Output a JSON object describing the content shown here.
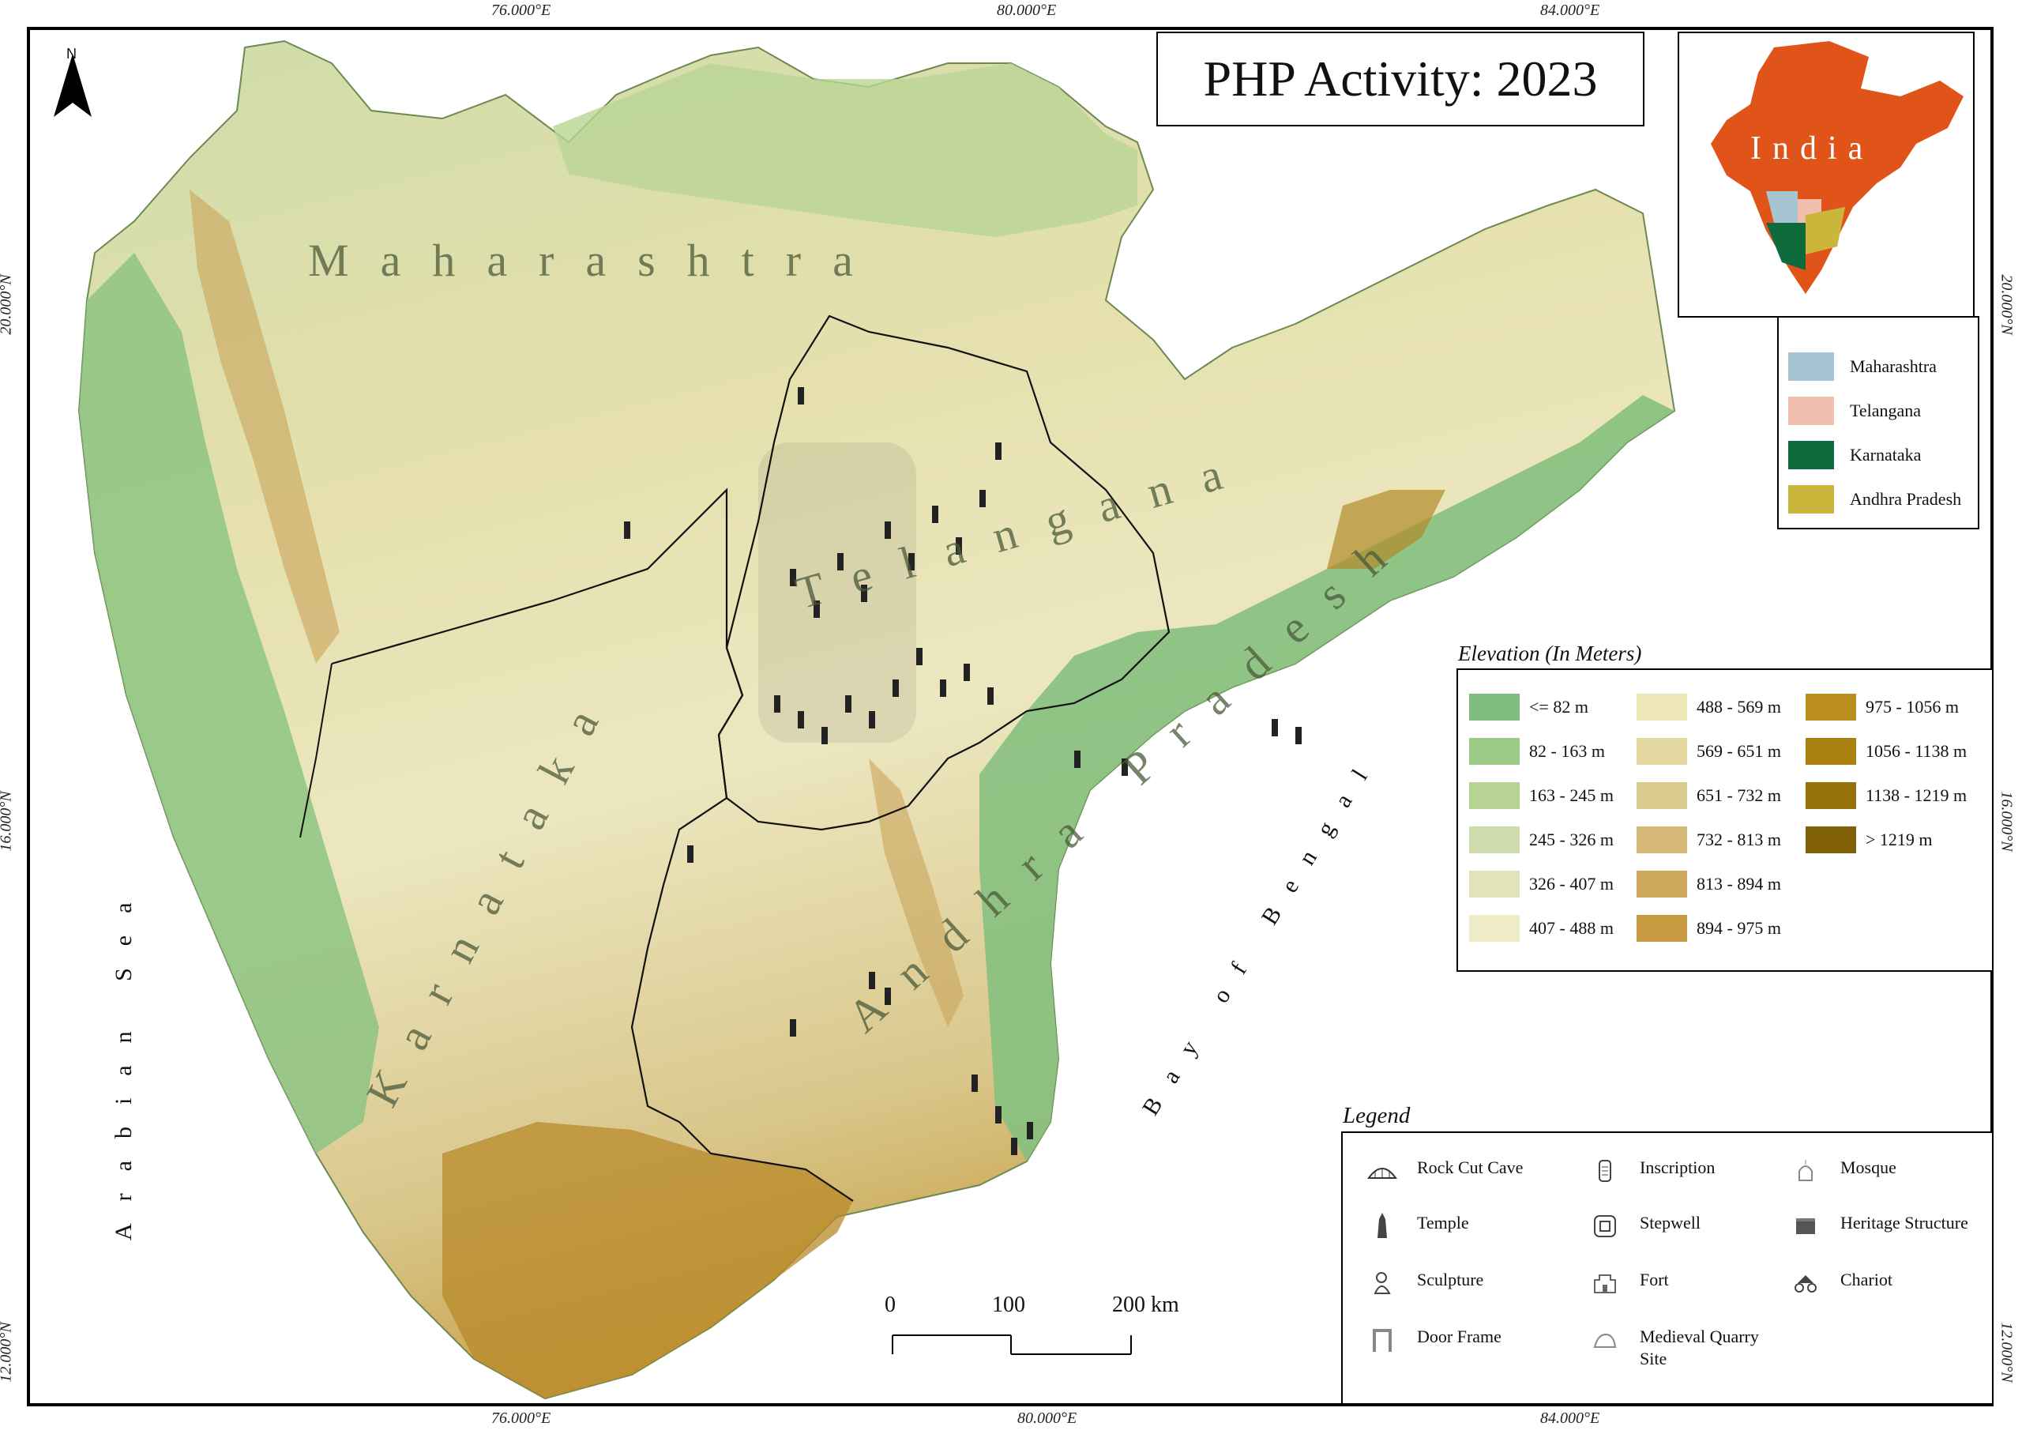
{
  "title": "PHP Activity: 2023",
  "coordinates": {
    "top": [
      "76.000°E",
      "80.000°E",
      "84.000°E"
    ],
    "bottom": [
      "76.000°E",
      "80.000°E",
      "84.000°E"
    ],
    "left": [
      "20.000°N",
      "16.000°N",
      "12.000°N"
    ],
    "right": [
      "20.000°N",
      "16.000°N",
      "12.000°N"
    ]
  },
  "north_arrow": "N",
  "inset": {
    "label": "India"
  },
  "map_labels": {
    "maharashtra": "Maharashtra",
    "telangana": "Telangana",
    "karnataka": "Karnataka",
    "andhra_pradesh": "Andhra Pradesh",
    "arabian_sea": "Arabian Sea",
    "bay_of_bengal": "Bay of Bengal"
  },
  "state_legend": [
    {
      "label": "Maharashtra",
      "color": "#a7c4d2"
    },
    {
      "label": "Telangana",
      "color": "#f2bfae"
    },
    {
      "label": "Karnataka",
      "color": "#0f6a3b"
    },
    {
      "label": "Andhra Pradesh",
      "color": "#c9b63a"
    }
  ],
  "elevation_legend": {
    "title": "Elevation (In Meters)",
    "classes": [
      {
        "label": "<= 82 m",
        "color": "#7fbe7d"
      },
      {
        "label": "82 - 163 m",
        "color": "#9ccb87"
      },
      {
        "label": "163 - 245 m",
        "color": "#b7d394"
      },
      {
        "label": "245 - 326 m",
        "color": "#cddcaa"
      },
      {
        "label": "326 - 407 m",
        "color": "#e1e4b8"
      },
      {
        "label": "407 - 488 m",
        "color": "#eeecc6"
      },
      {
        "label": "488 - 569 m",
        "color": "#ede6b8"
      },
      {
        "label": "569 - 651 m",
        "color": "#e5d9a2"
      },
      {
        "label": "651 - 732 m",
        "color": "#dccb8f"
      },
      {
        "label": "732 - 813 m",
        "color": "#d5b877"
      },
      {
        "label": "813 - 894 m",
        "color": "#cca95c"
      },
      {
        "label": "894 - 975 m",
        "color": "#c79b3f"
      },
      {
        "label": "975 - 1056 m",
        "color": "#b98e1c"
      },
      {
        "label": "1056 - 1138 m",
        "color": "#a98110"
      },
      {
        "label": "1138 - 1219 m",
        "color": "#967109"
      },
      {
        "label": "> 1219 m",
        "color": "#7f6007"
      }
    ]
  },
  "legend": {
    "title": "Legend",
    "items": [
      {
        "label": "Rock Cut Cave",
        "icon": "rock-cut-cave-icon"
      },
      {
        "label": "Temple",
        "icon": "temple-icon"
      },
      {
        "label": "Sculpture",
        "icon": "sculpture-icon"
      },
      {
        "label": "Door Frame",
        "icon": "door-frame-icon"
      },
      {
        "label": "Inscription",
        "icon": "inscription-icon"
      },
      {
        "label": "Stepwell",
        "icon": "stepwell-icon"
      },
      {
        "label": "Fort",
        "icon": "fort-icon"
      },
      {
        "label": "Medieval Quarry Site",
        "icon": "quarry-icon"
      },
      {
        "label": "Mosque",
        "icon": "mosque-icon"
      },
      {
        "label": "Heritage Structure",
        "icon": "heritage-structure-icon"
      },
      {
        "label": "Chariot",
        "icon": "chariot-icon"
      }
    ]
  },
  "scale_bar": {
    "labels": [
      "0",
      "100",
      "200 km"
    ]
  }
}
